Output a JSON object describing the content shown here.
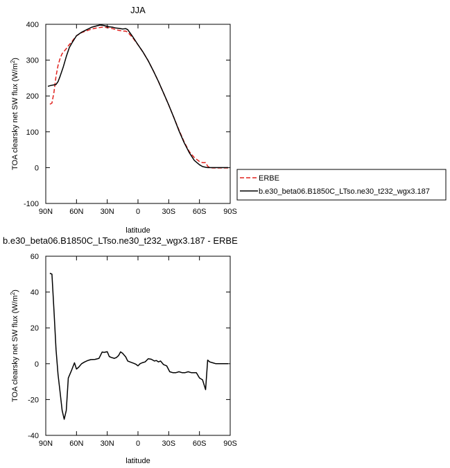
{
  "chart_data": [
    {
      "type": "line",
      "title": "JJA",
      "xlabel": "latitude",
      "ylabel": "TOA clearsky net SW flux (W/m",
      "ylabel_sup": "2",
      "ylabel_tail": ")",
      "xlim": [
        90,
        -90
      ],
      "ylim": [
        -100,
        400
      ],
      "x_ticks": [
        90,
        60,
        30,
        0,
        -30,
        -60,
        -90
      ],
      "x_tick_labels": [
        "90N",
        "60N",
        "30N",
        "0",
        "30S",
        "60S",
        "90S"
      ],
      "y_ticks": [
        -100,
        0,
        100,
        200,
        300,
        400
      ],
      "y_tick_labels": [
        "-100",
        "0",
        "100",
        "200",
        "300",
        "400"
      ],
      "series": [
        {
          "name": "ERBE",
          "color": "#e0201c",
          "dash": "dashed",
          "x": [
            86,
            84,
            82,
            80,
            78,
            76,
            74,
            72,
            70,
            68,
            65,
            60,
            55,
            50,
            45,
            40,
            35,
            30,
            25,
            20,
            15,
            12,
            10,
            5,
            0,
            -5,
            -10,
            -15,
            -20,
            -25,
            -30,
            -35,
            -40,
            -45,
            -50,
            -55,
            -60,
            -63,
            -66,
            -68,
            -70,
            -73,
            -76,
            -80,
            -84,
            -88
          ],
          "y": [
            177,
            180,
            210,
            255,
            285,
            305,
            318,
            325,
            332,
            340,
            350,
            368,
            377,
            382,
            387,
            390,
            392,
            391,
            388,
            384,
            381,
            381,
            378,
            362,
            343,
            322,
            298,
            270,
            240,
            208,
            175,
            140,
            105,
            72,
            45,
            28,
            17,
            14,
            14,
            4,
            0,
            -1,
            -1,
            -1,
            -1,
            -1
          ]
        },
        {
          "name": "b.e30_beta06.B1850C_LTso.ne30_t232_wgx3.187",
          "color": "#000000",
          "dash": "solid",
          "x": [
            88,
            84,
            80,
            78,
            76,
            73,
            70,
            67,
            64,
            60,
            55,
            50,
            45,
            40,
            37,
            34,
            31,
            28,
            25,
            22,
            19,
            17,
            15,
            12,
            10,
            5,
            0,
            -5,
            -10,
            -15,
            -20,
            -25,
            -30,
            -35,
            -40,
            -45,
            -50,
            -55,
            -60,
            -63,
            -66,
            -68,
            -70,
            -73,
            -76,
            -80,
            -84,
            -88
          ],
          "y": [
            227,
            230,
            232,
            240,
            255,
            280,
            310,
            335,
            350,
            368,
            378,
            385,
            392,
            396,
            398,
            397,
            395,
            393,
            392,
            390,
            389,
            388,
            387,
            388,
            385,
            365,
            343,
            322,
            298,
            270,
            240,
            208,
            175,
            140,
            103,
            70,
            42,
            20,
            8,
            3,
            1,
            0,
            0,
            0,
            0,
            0,
            0,
            0
          ]
        }
      ],
      "legend": {
        "placement": "right",
        "entries": [
          "ERBE",
          "b.e30_beta06.B1850C_LTso.ne30_t232_wgx3.187"
        ]
      }
    },
    {
      "type": "line",
      "title": "b.e30_beta06.B1850C_LTso.ne30_t232_wgx3.187 - ERBE",
      "xlabel": "latitude",
      "ylabel": "TOA clearsky net SW flux (W/m",
      "ylabel_sup": "2",
      "ylabel_tail": ")",
      "xlim": [
        90,
        -90
      ],
      "ylim": [
        -40,
        60
      ],
      "x_ticks": [
        90,
        60,
        30,
        0,
        -30,
        -60,
        -90
      ],
      "x_tick_labels": [
        "90N",
        "60N",
        "30N",
        "0",
        "30S",
        "60S",
        "90S"
      ],
      "y_ticks": [
        -40,
        -20,
        0,
        20,
        40,
        60
      ],
      "y_tick_labels": [
        "-40",
        "-20",
        "0",
        "20",
        "40",
        "60"
      ],
      "series": [
        {
          "color": "#000000",
          "dash": "solid",
          "x": [
            86,
            84,
            82,
            80,
            78,
            76,
            74,
            72,
            70,
            68,
            65,
            62,
            60,
            58,
            55,
            52,
            49,
            46,
            42,
            38,
            35,
            33,
            30,
            28,
            26,
            23,
            21,
            19,
            17,
            15,
            12,
            10,
            7,
            4,
            2,
            0,
            -2,
            -4,
            -7,
            -10,
            -13,
            -16,
            -18,
            -20,
            -22,
            -25,
            -28,
            -31,
            -34,
            -37,
            -40,
            -43,
            -46,
            -49,
            -52,
            -55,
            -57,
            -60,
            -63,
            -66,
            -68,
            -70,
            -73,
            -76,
            -80,
            -84,
            -88
          ],
          "y": [
            50.5,
            50,
            30,
            8,
            -6,
            -16,
            -26,
            -31,
            -26,
            -8,
            -4,
            0.5,
            -3,
            -2,
            0,
            1,
            1.8,
            2.3,
            2.4,
            3,
            6.5,
            6.3,
            6.7,
            4,
            3.5,
            3,
            3.5,
            4.5,
            6.6,
            5.8,
            3.8,
            1.5,
            0.8,
            0.2,
            -0.3,
            -1.2,
            0,
            0.5,
            1,
            2.8,
            2.5,
            1.5,
            1.8,
            1,
            1.5,
            -0.5,
            -1.2,
            -4.5,
            -5,
            -5,
            -4.5,
            -5,
            -5,
            -4.5,
            -5,
            -5,
            -5,
            -8,
            -9,
            -14.5,
            2,
            1,
            0.5,
            0,
            0,
            0,
            0
          ]
        }
      ]
    }
  ]
}
